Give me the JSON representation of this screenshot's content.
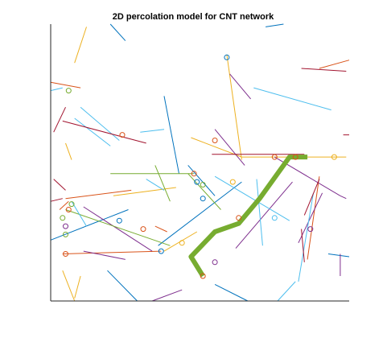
{
  "chart_data": {
    "type": "scatter",
    "title": "2D percolation model for CNT network",
    "xlabel": "",
    "ylabel": "",
    "xlim": [
      0,
      1
    ],
    "ylim": [
      0,
      1
    ],
    "grid": false,
    "axes_box": "left-bottom",
    "series": [
      {
        "color": "#0072BD",
        "segments": [
          [
            [
              0.2,
              1.0
            ],
            [
              0.25,
              0.94
            ]
          ],
          [
            [
              0.38,
              0.74
            ],
            [
              0.43,
              0.46
            ]
          ],
          [
            [
              0.46,
              0.49
            ],
            [
              0.55,
              0.38
            ]
          ],
          [
            [
              0.0,
              0.22
            ],
            [
              0.26,
              0.33
            ]
          ],
          [
            [
              0.36,
              0.2
            ],
            [
              0.64,
              0.43
            ]
          ],
          [
            [
              0.55,
              0.06
            ],
            [
              0.66,
              0.0
            ]
          ],
          [
            [
              0.19,
              0.11
            ],
            [
              0.29,
              0.0
            ]
          ],
          [
            [
              0.93,
              0.17
            ],
            [
              1.0,
              0.16
            ]
          ],
          [
            [
              0.72,
              0.99
            ],
            [
              0.78,
              1.0
            ]
          ]
        ]
      },
      {
        "color": "#D95319",
        "segments": [
          [
            [
              0.0,
              0.79
            ],
            [
              0.1,
              0.77
            ]
          ],
          [
            [
              0.03,
              0.33
            ],
            [
              0.06,
              0.36
            ]
          ],
          [
            [
              0.05,
              0.37
            ],
            [
              0.27,
              0.4
            ]
          ],
          [
            [
              0.04,
              0.17
            ],
            [
              0.37,
              0.18
            ]
          ],
          [
            [
              0.35,
              0.27
            ],
            [
              0.39,
              0.25
            ]
          ],
          [
            [
              0.9,
              0.45
            ],
            [
              0.86,
              0.15
            ]
          ],
          [
            [
              0.9,
              0.84
            ],
            [
              1.0,
              0.87
            ]
          ]
        ]
      },
      {
        "color": "#EDB120",
        "segments": [
          [
            [
              0.08,
              0.86
            ],
            [
              0.12,
              0.99
            ]
          ],
          [
            [
              0.47,
              0.59
            ],
            [
              0.64,
              0.52
            ]
          ],
          [
            [
              0.64,
              0.52
            ],
            [
              0.75,
              0.52
            ]
          ],
          [
            [
              0.75,
              0.52
            ],
            [
              0.86,
              0.52
            ]
          ],
          [
            [
              0.86,
              0.52
            ],
            [
              0.99,
              0.52
            ]
          ],
          [
            [
              0.59,
              0.89
            ],
            [
              0.64,
              0.51
            ]
          ],
          [
            [
              0.21,
              0.38
            ],
            [
              0.42,
              0.41
            ]
          ],
          [
            [
              0.1,
              0.09
            ],
            [
              0.08,
              0.01
            ]
          ],
          [
            [
              0.04,
              0.11
            ],
            [
              0.08,
              0.0
            ]
          ],
          [
            [
              0.05,
              0.57
            ],
            [
              0.07,
              0.51
            ]
          ],
          [
            [
              0.38,
              0.18
            ],
            [
              0.49,
              0.25
            ]
          ]
        ]
      },
      {
        "color": "#7E2F8E",
        "segments": [
          [
            [
              0.55,
              0.62
            ],
            [
              0.65,
              0.49
            ]
          ],
          [
            [
              0.6,
              0.82
            ],
            [
              0.67,
              0.73
            ]
          ],
          [
            [
              0.75,
              0.52
            ],
            [
              0.97,
              0.38
            ]
          ],
          [
            [
              0.97,
              0.38
            ],
            [
              0.99,
              0.37
            ]
          ],
          [
            [
              0.62,
              0.19
            ],
            [
              0.81,
              0.43
            ]
          ],
          [
            [
              0.91,
              0.39
            ],
            [
              0.83,
              0.21
            ]
          ],
          [
            [
              0.97,
              0.17
            ],
            [
              0.97,
              0.09
            ]
          ],
          [
            [
              0.34,
              0.0
            ],
            [
              0.44,
              0.04
            ]
          ],
          [
            [
              0.11,
              0.34
            ],
            [
              0.34,
              0.18
            ]
          ],
          [
            [
              0.11,
              0.18
            ],
            [
              0.25,
              0.15
            ]
          ]
        ]
      },
      {
        "color": "#77AC30",
        "segments": [
          [
            [
              0.2,
              0.46
            ],
            [
              0.48,
              0.46
            ]
          ],
          [
            [
              0.46,
              0.46
            ],
            [
              0.57,
              0.33
            ]
          ],
          [
            [
              0.05,
              0.33
            ],
            [
              0.4,
              0.2
            ]
          ],
          [
            [
              0.35,
              0.49
            ],
            [
              0.4,
              0.36
            ]
          ]
        ]
      },
      {
        "color": "#4DBEEE",
        "segments": [
          [
            [
              0.0,
              0.76
            ],
            [
              0.04,
              0.77
            ]
          ],
          [
            [
              0.3,
              0.61
            ],
            [
              0.38,
              0.62
            ]
          ],
          [
            [
              0.08,
              0.66
            ],
            [
              0.2,
              0.56
            ]
          ],
          [
            [
              0.1,
              0.7
            ],
            [
              0.23,
              0.58
            ]
          ],
          [
            [
              0.68,
              0.77
            ],
            [
              0.94,
              0.69
            ]
          ],
          [
            [
              0.69,
              0.44
            ],
            [
              0.71,
              0.2
            ]
          ],
          [
            [
              0.32,
              0.44
            ],
            [
              0.38,
              0.4
            ]
          ],
          [
            [
              0.55,
              0.45
            ],
            [
              0.8,
              0.29
            ]
          ],
          [
            [
              0.88,
              0.39
            ],
            [
              0.83,
              0.07
            ]
          ],
          [
            [
              0.82,
              0.07
            ],
            [
              0.76,
              0.0
            ]
          ],
          [
            [
              0.07,
              0.36
            ],
            [
              0.12,
              0.27
            ]
          ]
        ]
      },
      {
        "color": "#A2142F",
        "segments": [
          [
            [
              0.04,
              0.65
            ],
            [
              0.32,
              0.57
            ]
          ],
          [
            [
              0.54,
              0.53
            ],
            [
              0.85,
              0.53
            ]
          ],
          [
            [
              0.9,
              0.44
            ],
            [
              0.85,
              0.31
            ]
          ],
          [
            [
              0.84,
              0.26
            ],
            [
              0.85,
              0.14
            ]
          ],
          [
            [
              0.01,
              0.44
            ],
            [
              0.05,
              0.4
            ]
          ],
          [
            [
              0.01,
              0.61
            ],
            [
              0.05,
              0.7
            ]
          ],
          [
            [
              0.0,
              0.36
            ],
            [
              0.04,
              0.37
            ]
          ],
          [
            [
              0.84,
              0.84
            ],
            [
              0.99,
              0.83
            ]
          ],
          [
            [
              0.98,
              0.6
            ],
            [
              1.0,
              0.6
            ]
          ]
        ]
      }
    ],
    "intersections": [
      {
        "x": 0.06,
        "y": 0.76,
        "color": "#77AC30"
      },
      {
        "x": 0.24,
        "y": 0.6,
        "color": "#D95319"
      },
      {
        "x": 0.59,
        "y": 0.88,
        "color": "#0072BD"
      },
      {
        "x": 0.55,
        "y": 0.58,
        "color": "#D95319"
      },
      {
        "x": 0.48,
        "y": 0.46,
        "color": "#D95319"
      },
      {
        "x": 0.49,
        "y": 0.43,
        "color": "#0072BD"
      },
      {
        "x": 0.51,
        "y": 0.42,
        "color": "#77AC30"
      },
      {
        "x": 0.51,
        "y": 0.37,
        "color": "#0072BD"
      },
      {
        "x": 0.61,
        "y": 0.43,
        "color": "#EDB120"
      },
      {
        "x": 0.75,
        "y": 0.52,
        "color": "#D95319"
      },
      {
        "x": 0.95,
        "y": 0.52,
        "color": "#EDB120"
      },
      {
        "x": 0.06,
        "y": 0.33,
        "color": "#D95319"
      },
      {
        "x": 0.07,
        "y": 0.35,
        "color": "#77AC30"
      },
      {
        "x": 0.04,
        "y": 0.3,
        "color": "#77AC30"
      },
      {
        "x": 0.05,
        "y": 0.27,
        "color": "#7E2F8E"
      },
      {
        "x": 0.23,
        "y": 0.29,
        "color": "#0072BD"
      },
      {
        "x": 0.31,
        "y": 0.26,
        "color": "#D95319"
      },
      {
        "x": 0.05,
        "y": 0.17,
        "color": "#D95319"
      },
      {
        "x": 0.05,
        "y": 0.24,
        "color": "#77AC30"
      },
      {
        "x": 0.37,
        "y": 0.18,
        "color": "#0072BD"
      },
      {
        "x": 0.44,
        "y": 0.21,
        "color": "#EDB120"
      },
      {
        "x": 0.55,
        "y": 0.14,
        "color": "#7E2F8E"
      },
      {
        "x": 0.51,
        "y": 0.09,
        "color": "#D95319"
      },
      {
        "x": 0.63,
        "y": 0.3,
        "color": "#D95319"
      },
      {
        "x": 0.75,
        "y": 0.3,
        "color": "#4DBEEE"
      },
      {
        "x": 0.87,
        "y": 0.26,
        "color": "#7E2F8E"
      },
      {
        "x": 0.82,
        "y": 0.52,
        "color": "#D95319"
      }
    ],
    "percolation_path": {
      "color": "#77AC30",
      "points": [
        [
          0.51,
          0.09
        ],
        [
          0.47,
          0.16
        ],
        [
          0.55,
          0.25
        ],
        [
          0.63,
          0.28
        ],
        [
          0.7,
          0.37
        ],
        [
          0.8,
          0.52
        ],
        [
          0.86,
          0.52
        ]
      ]
    }
  }
}
